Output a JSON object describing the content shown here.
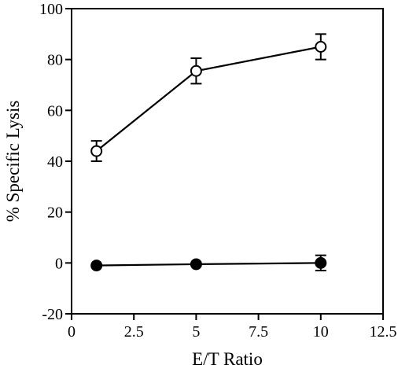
{
  "chart_data": {
    "type": "line",
    "xlabel": "E/T Ratio",
    "ylabel": "% Specific Lysis",
    "xlim": [
      0,
      12.5
    ],
    "ylim": [
      -20,
      100
    ],
    "xticks": [
      0,
      2.5,
      5,
      7.5,
      10,
      12.5
    ],
    "xtick_labels": [
      "0",
      "2.5",
      "5",
      "7.5",
      "10",
      "12.5"
    ],
    "yticks": [
      -20,
      0,
      20,
      40,
      60,
      80,
      100
    ],
    "ytick_labels": [
      "-20",
      "0",
      "20",
      "40",
      "60",
      "80",
      "100"
    ],
    "grid": false,
    "series": [
      {
        "marker": "open-circle",
        "x": [
          1,
          5,
          10
        ],
        "y": [
          44,
          75.5,
          85
        ],
        "error": [
          4,
          5,
          5
        ]
      },
      {
        "marker": "filled-circle",
        "x": [
          1,
          5,
          10
        ],
        "y": [
          -1,
          -0.5,
          0
        ],
        "error": [
          0,
          0,
          3
        ]
      }
    ]
  }
}
